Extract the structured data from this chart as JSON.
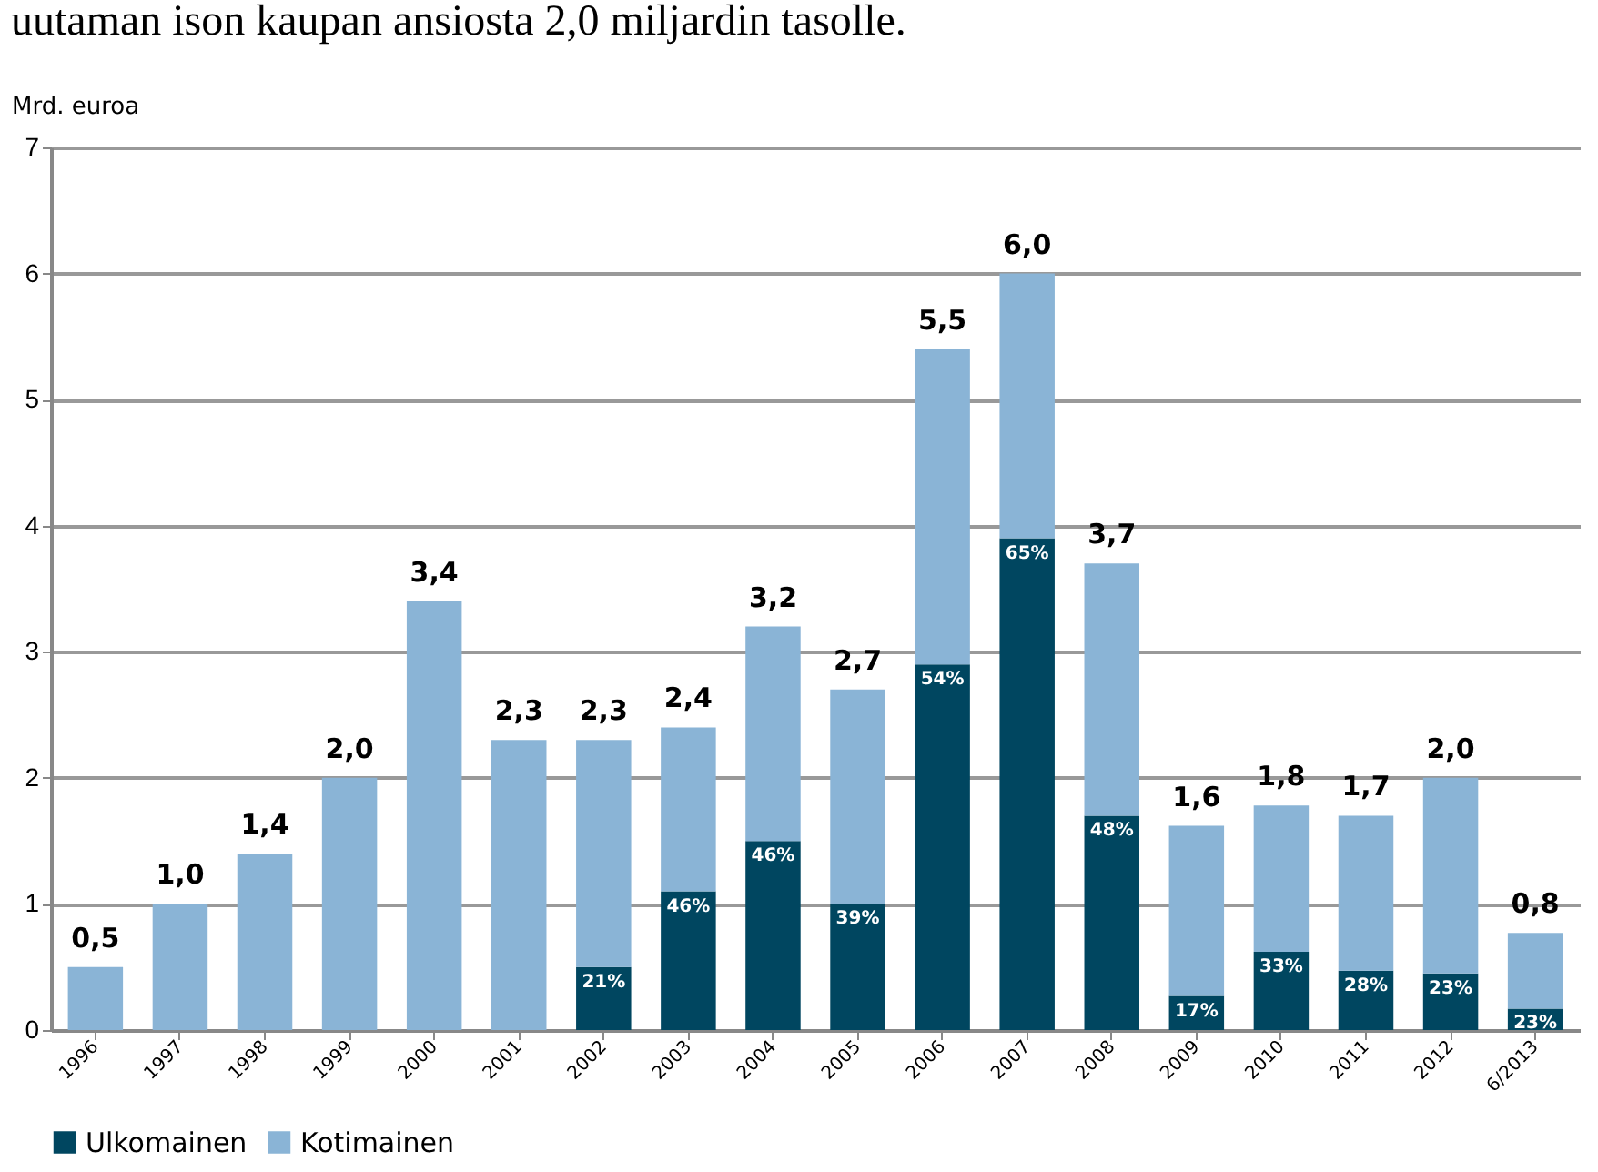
{
  "chart_data": {
    "type": "bar",
    "stacked": true,
    "ylabel": "Mrd. euroa",
    "annotations": [
      "uutaman ison kaupan ansiosta 2,0 miljardin tasolle.",
      {
        "text": "21%",
        "x": "2002",
        "y": 0.5
      },
      {
        "text": "46%",
        "x": "2003",
        "y": 1.1
      },
      {
        "text": "46%",
        "x": "2004",
        "y": 1.5
      },
      {
        "text": "39%",
        "x": "2005",
        "y": 1.0
      },
      {
        "text": "54%",
        "x": "2006",
        "y": 2.9
      },
      {
        "text": "65%",
        "x": "2007",
        "y": 3.9
      },
      {
        "text": "48%",
        "x": "2008",
        "y": 1.7
      },
      {
        "text": "17%",
        "x": "2009",
        "y": 0.27
      },
      {
        "text": "33%",
        "x": "2010",
        "y": 0.62
      },
      {
        "text": "28%",
        "x": "2011",
        "y": 0.47
      },
      {
        "text": "23%",
        "x": "2012",
        "y": 0.45
      },
      {
        "text": "23%",
        "x": "6/2013",
        "y": 0.17
      }
    ],
    "categories": [
      "1996",
      "1997",
      "1998",
      "1999",
      "2000",
      "2001",
      "2002",
      "2003",
      "2004",
      "2005",
      "2006",
      "2007",
      "2008",
      "2009",
      "2010",
      "2011",
      "2012",
      "6/2013"
    ],
    "series": [
      {
        "name": "Ulkomainen",
        "color": "#004660",
        "values": [
          null,
          null,
          null,
          null,
          null,
          null,
          0.5,
          1.1,
          1.5,
          1.0,
          2.9,
          3.9,
          1.7,
          0.27,
          0.62,
          0.47,
          0.45,
          0.17
        ]
      },
      {
        "name": "Kotimainen",
        "color": "#8ab4d6",
        "values": [
          0.5,
          1.0,
          1.4,
          2.0,
          3.4,
          2.3,
          1.8,
          1.3,
          1.7,
          1.7,
          2.5,
          2.1,
          2.0,
          1.35,
          1.16,
          1.23,
          1.55,
          0.6
        ]
      }
    ],
    "totals": [
      "0,5",
      "1,0",
      "1,4",
      "2,0",
      "3,4",
      "2,3",
      "2,3",
      "2,4",
      "3,2",
      "2,7",
      "5,5",
      "6,0",
      "3,7",
      "1,6",
      "1,8",
      "1,7",
      "2,0",
      "0,8"
    ],
    "ylim": [
      0,
      7
    ],
    "yticks": [
      0,
      1,
      2,
      3,
      4,
      5,
      6,
      7
    ],
    "grid": "y",
    "legend": "bottom"
  }
}
